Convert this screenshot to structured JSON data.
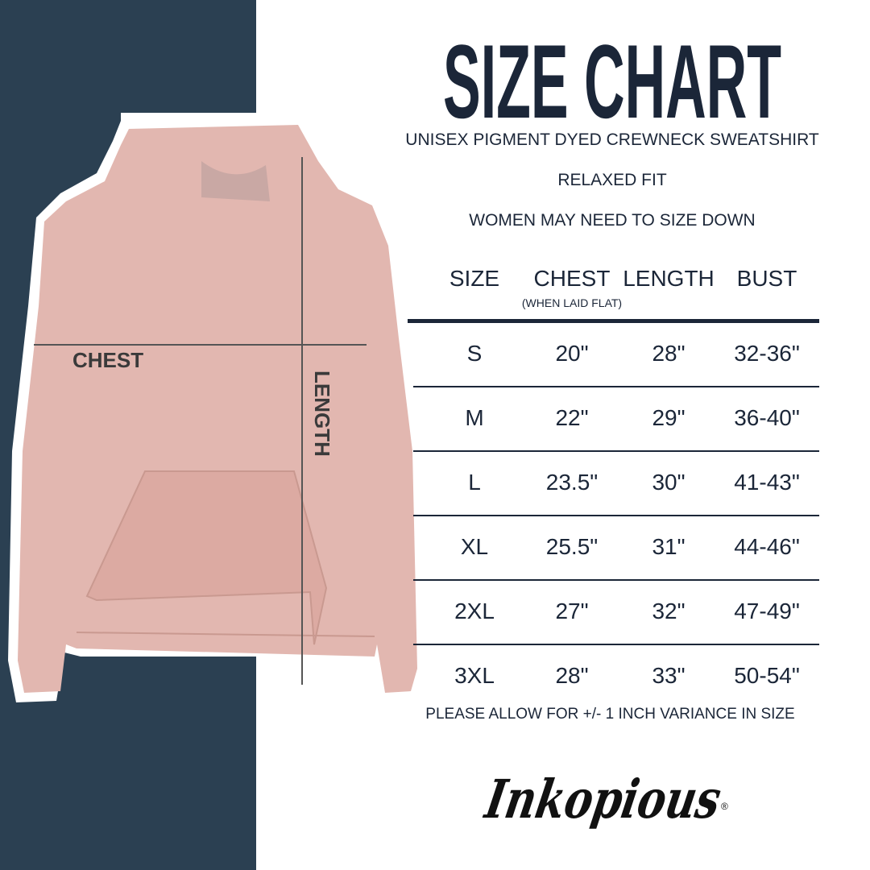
{
  "title": "SIZE CHART",
  "subtitle_lines": [
    "UNISEX PIGMENT DYED CREWNECK SWEATSHIRT",
    "RELAXED FIT",
    "WOMEN MAY NEED TO SIZE DOWN"
  ],
  "table": {
    "headers": [
      "SIZE",
      "CHEST",
      "LENGTH",
      "BUST"
    ],
    "chest_note": "(WHEN LAID FLAT)",
    "rows": [
      [
        "S",
        "20\"",
        "28\"",
        "32-36\""
      ],
      [
        "M",
        "22\"",
        "29\"",
        "36-40\""
      ],
      [
        "L",
        "23.5\"",
        "30\"",
        "41-43\""
      ],
      [
        "XL",
        "25.5\"",
        "31\"",
        "44-46\""
      ],
      [
        "2XL",
        "27\"",
        "32\"",
        "47-49\""
      ],
      [
        "3XL",
        "28\"",
        "33\"",
        "50-54\""
      ]
    ]
  },
  "footer_note": "PLEASE ALLOW FOR +/- 1 INCH VARIANCE IN SIZE",
  "diagram": {
    "chest_label": "CHEST",
    "length_label": "LENGTH"
  },
  "brand": "Inkopious",
  "colors": {
    "navy": "#1b2638",
    "panel": "#2b4052",
    "garment": "#e2b7b0"
  }
}
